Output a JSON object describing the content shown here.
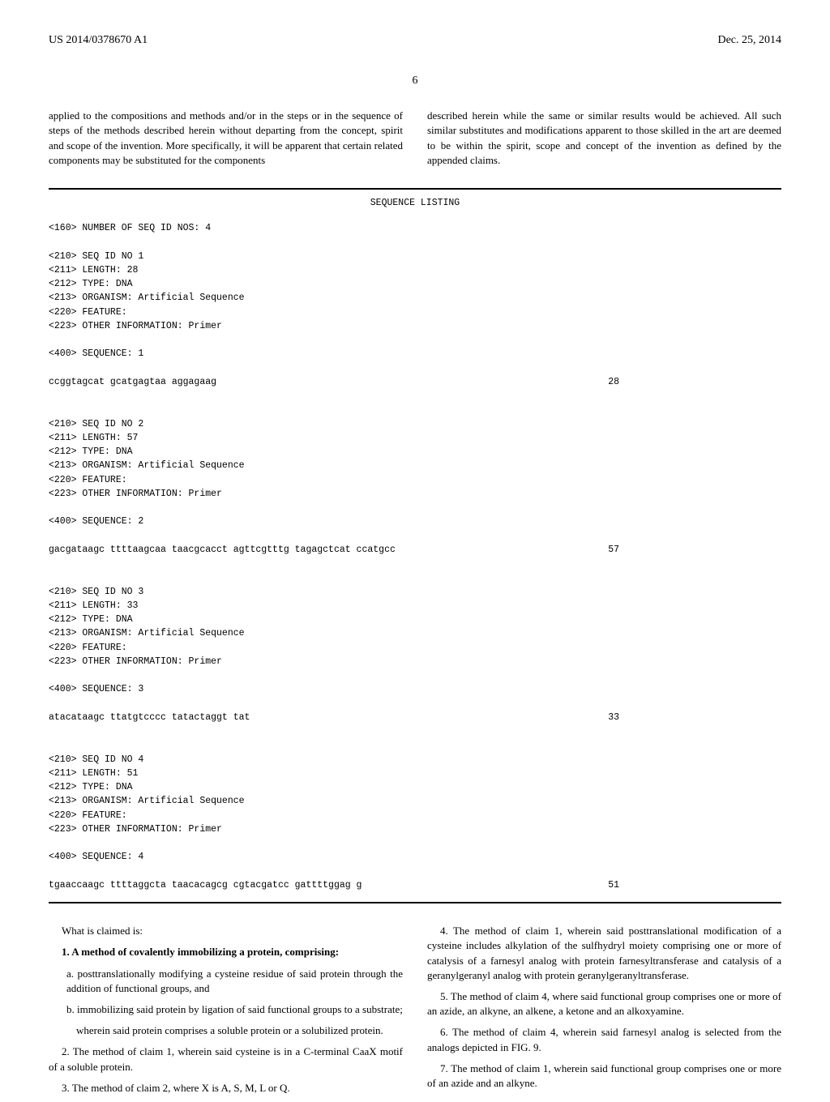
{
  "header": {
    "left": "US 2014/0378670 A1",
    "right": "Dec. 25, 2014"
  },
  "page_number": "6",
  "top_paragraph": {
    "left": "applied to the compositions and methods and/or in the steps or in the sequence of steps of the methods described herein without departing from the concept, spirit and scope of the invention. More specifically, it will be apparent that certain related components may be substituted for the components",
    "right": "described herein while the same or similar results would be achieved. All such similar substitutes and modifications apparent to those skilled in the art are deemed to be within the spirit, scope and concept of the invention as defined by the appended claims."
  },
  "sequence_listing": {
    "title": "SEQUENCE LISTING",
    "num_seq": "<160> NUMBER OF SEQ ID NOS: 4",
    "entries": [
      {
        "meta": "<210> SEQ ID NO 1\n<211> LENGTH: 28\n<212> TYPE: DNA\n<213> ORGANISM: Artificial Sequence\n<220> FEATURE:\n<223> OTHER INFORMATION: Primer\n\n<400> SEQUENCE: 1",
        "seq": "ccggtagcat gcatgagtaa aggagaag",
        "len": "28"
      },
      {
        "meta": "<210> SEQ ID NO 2\n<211> LENGTH: 57\n<212> TYPE: DNA\n<213> ORGANISM: Artificial Sequence\n<220> FEATURE:\n<223> OTHER INFORMATION: Primer\n\n<400> SEQUENCE: 2",
        "seq": "gacgataagc ttttaagcaa taacgcacct agttcgtttg tagagctcat ccatgcc",
        "len": "57"
      },
      {
        "meta": "<210> SEQ ID NO 3\n<211> LENGTH: 33\n<212> TYPE: DNA\n<213> ORGANISM: Artificial Sequence\n<220> FEATURE:\n<223> OTHER INFORMATION: Primer\n\n<400> SEQUENCE: 3",
        "seq": "atacataagc ttatgtcccc tatactaggt tat",
        "len": "33"
      },
      {
        "meta": "<210> SEQ ID NO 4\n<211> LENGTH: 51\n<212> TYPE: DNA\n<213> ORGANISM: Artificial Sequence\n<220> FEATURE:\n<223> OTHER INFORMATION: Primer\n\n<400> SEQUENCE: 4",
        "seq": "tgaaccaagc ttttaggcta taacacagcg cgtacgatcc gattttggag g",
        "len": "51"
      }
    ]
  },
  "claims": {
    "intro": "What is claimed is:",
    "left": [
      "1. A method of covalently immobilizing a protein, comprising:",
      "a. posttranslationally modifying a cysteine residue of said protein through the addition of functional groups, and",
      "b. immobilizing said protein by ligation of said functional groups to a substrate;",
      "wherein said protein comprises a soluble protein or a solubilized protein.",
      "2. The method of claim 1, wherein said cysteine is in a C-terminal CaaX motif of a soluble protein.",
      "3. The method of claim 2, where X is A, S, M, L or Q."
    ],
    "right": [
      "4. The method of claim 1, wherein said posttranslational modification of a cysteine includes alkylation of the sulfhydryl moiety comprising one or more of catalysis of a farnesyl analog with protein farnesyltransferase and catalysis of a geranylgeranyl analog with protein geranylgeranyltransferase.",
      "5. The method of claim 4, where said functional group comprises one or more of an azide, an alkyne, an alkene, a ketone and an alkoxyamine.",
      "6. The method of claim 4, wherein said farnesyl analog is selected from the analogs depicted in FIG. 9.",
      "7. The method of claim 1, wherein said functional group comprises one or more of an azide and an alkyne."
    ]
  }
}
